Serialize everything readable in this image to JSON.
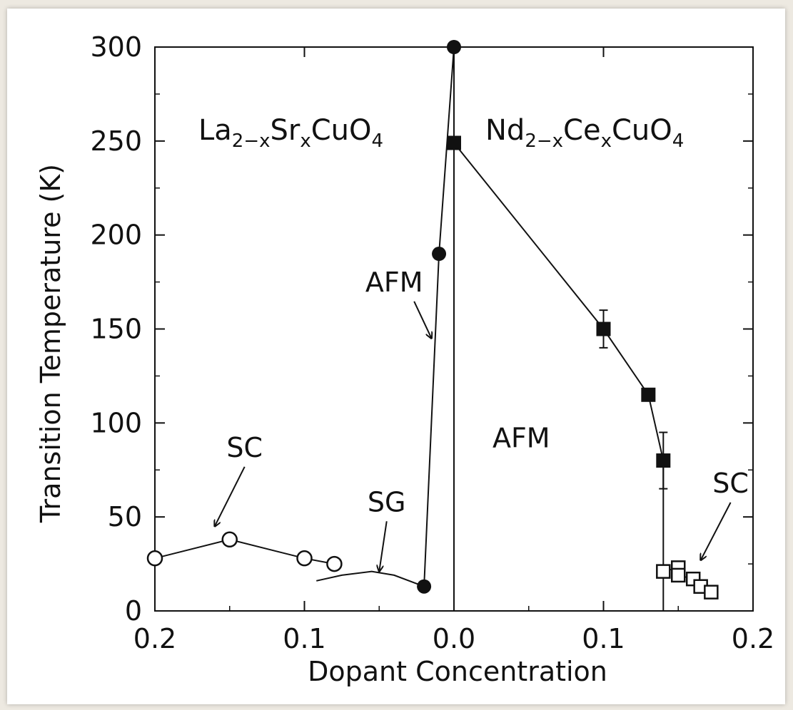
{
  "chart_data": {
    "type": "scatter",
    "xlabel": "Dopant Concentration",
    "ylabel": "Transition Temperature (K)",
    "ylim": [
      0,
      300
    ],
    "xlim": [
      -0.2,
      0.2
    ],
    "x_note": "left half is La2-xSrxCuO4 doping (x increases to the left), right half is Nd2-xCexCuO4 doping",
    "x_tick_labels": [
      "0.2",
      "0.1",
      "0.0",
      "0.1",
      "0.2"
    ],
    "x_ticks": [
      -0.2,
      -0.1,
      0.0,
      0.1,
      0.2
    ],
    "y_ticks": [
      0,
      50,
      100,
      150,
      200,
      250,
      300
    ],
    "grid": false,
    "compound_labels": [
      {
        "base": "La",
        "parts": [
          [
            "La",
            ""
          ],
          [
            "2−x",
            "sub"
          ],
          [
            "Sr",
            ""
          ],
          [
            "x",
            "sub"
          ],
          [
            "CuO",
            ""
          ],
          [
            "4",
            "sub"
          ]
        ]
      },
      {
        "base": "Nd",
        "parts": [
          [
            "Nd",
            ""
          ],
          [
            "2−x",
            "sub"
          ],
          [
            "Ce",
            ""
          ],
          [
            "x",
            "sub"
          ],
          [
            "CuO",
            ""
          ],
          [
            "4",
            "sub"
          ]
        ]
      }
    ],
    "series": [
      {
        "marker": "filled-circle",
        "x": [
          -0.02,
          -0.01,
          0.0
        ],
        "y": [
          13,
          190,
          300
        ]
      },
      {
        "marker": "open-circle",
        "x": [
          -0.2,
          -0.15,
          -0.1,
          -0.08
        ],
        "y": [
          28,
          38,
          28,
          25
        ]
      },
      {
        "marker": "filled-square",
        "x": [
          0.0,
          0.1,
          0.13,
          0.14
        ],
        "y": [
          249,
          150,
          115,
          80
        ],
        "yerr": [
          0,
          10,
          0,
          15
        ]
      },
      {
        "marker": "open-square",
        "x": [
          0.14,
          0.15,
          0.15,
          0.16,
          0.165,
          0.172
        ],
        "y": [
          21,
          23,
          19,
          17,
          13,
          10
        ]
      }
    ],
    "annotations": [
      {
        "text": "AFM",
        "x": -0.04,
        "y": 170,
        "arrow_to": [
          -0.015,
          145
        ]
      },
      {
        "text": "AFM",
        "x": 0.045,
        "y": 87
      },
      {
        "text": "SC",
        "x": -0.14,
        "y": 82,
        "arrow_to": [
          -0.16,
          45
        ]
      },
      {
        "text": "SG",
        "x": -0.045,
        "y": 53,
        "arrow_to": [
          -0.05,
          21
        ]
      },
      {
        "text": "SC",
        "x": 0.185,
        "y": 63,
        "arrow_to": [
          0.165,
          27
        ]
      }
    ]
  }
}
